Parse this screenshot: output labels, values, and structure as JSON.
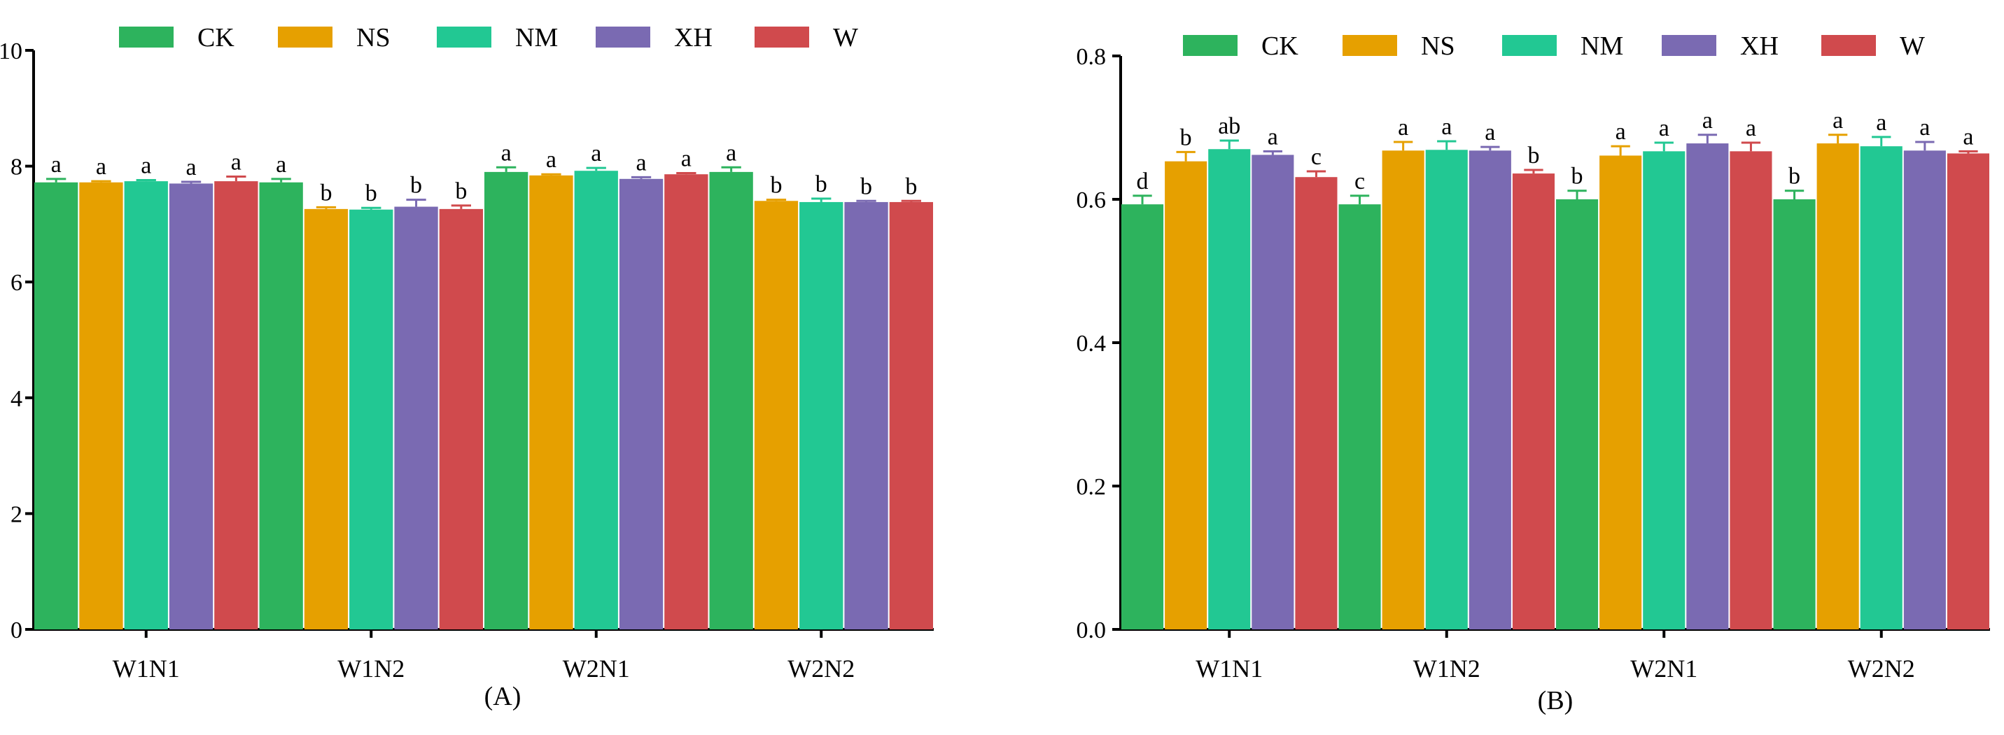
{
  "colors": {
    "CK": "#2db35d",
    "NS": "#e6a000",
    "NM": "#22c893",
    "XH": "#7a6ab2",
    "W": "#d04a4d",
    "axis": "#000000"
  },
  "chart_data": [
    {
      "type": "bar",
      "panel_label": "(A)",
      "categories": [
        "W1N1",
        "W1N2",
        "W2N1",
        "W2N2"
      ],
      "series": [
        {
          "name": "CK",
          "values": [
            7.72,
            7.72,
            7.9,
            7.9
          ],
          "errors": [
            0.06,
            0.06,
            0.08,
            0.08
          ],
          "letters": [
            "a",
            "a",
            "a",
            "a"
          ]
        },
        {
          "name": "NS",
          "values": [
            7.72,
            7.26,
            7.84,
            7.4
          ],
          "errors": [
            0.02,
            0.03,
            0.02,
            0.02
          ],
          "letters": [
            "a",
            "b",
            "a",
            "b"
          ]
        },
        {
          "name": "NM",
          "values": [
            7.74,
            7.25,
            7.92,
            7.38
          ],
          "errors": [
            0.02,
            0.03,
            0.05,
            0.06
          ],
          "letters": [
            "a",
            "b",
            "a",
            "b"
          ]
        },
        {
          "name": "XH",
          "values": [
            7.7,
            7.3,
            7.78,
            7.38
          ],
          "errors": [
            0.03,
            0.12,
            0.03,
            0.02
          ],
          "letters": [
            "a",
            "b",
            "a",
            "b"
          ]
        },
        {
          "name": "W",
          "values": [
            7.74,
            7.26,
            7.86,
            7.38
          ],
          "errors": [
            0.08,
            0.06,
            0.02,
            0.02
          ],
          "letters": [
            "a",
            "b",
            "a",
            "b"
          ]
        }
      ],
      "ylim": [
        0,
        10
      ],
      "yticks": [
        "0",
        "2",
        "4",
        "6",
        "8",
        "10"
      ],
      "legend": [
        "CK",
        "NS",
        "NM",
        "XH",
        "W"
      ],
      "legend_position": "top",
      "xlabel": "",
      "ylabel": ""
    },
    {
      "type": "bar",
      "panel_label": "(B)",
      "categories": [
        "W1N1",
        "W1N2",
        "W2N1",
        "W2N2"
      ],
      "series": [
        {
          "name": "CK",
          "values": [
            0.593,
            0.593,
            0.6,
            0.6
          ],
          "errors": [
            0.012,
            0.012,
            0.012,
            0.012
          ],
          "letters": [
            "d",
            "c",
            "b",
            "b"
          ]
        },
        {
          "name": "NS",
          "values": [
            0.653,
            0.668,
            0.661,
            0.678
          ],
          "errors": [
            0.013,
            0.012,
            0.013,
            0.012
          ],
          "letters": [
            "b",
            "a",
            "a",
            "a"
          ]
        },
        {
          "name": "NM",
          "values": [
            0.67,
            0.669,
            0.667,
            0.674
          ],
          "errors": [
            0.012,
            0.012,
            0.012,
            0.013
          ],
          "letters": [
            "ab",
            "a",
            "a",
            "a"
          ]
        },
        {
          "name": "XH",
          "values": [
            0.662,
            0.668,
            0.678,
            0.668
          ],
          "errors": [
            0.005,
            0.005,
            0.012,
            0.012
          ],
          "letters": [
            "a",
            "a",
            "a",
            "a"
          ]
        },
        {
          "name": "W",
          "values": [
            0.631,
            0.636,
            0.667,
            0.664
          ],
          "errors": [
            0.008,
            0.005,
            0.012,
            0.003
          ],
          "letters": [
            "c",
            "b",
            "a",
            "a"
          ]
        }
      ],
      "ylim": [
        0,
        0.8
      ],
      "yticks": [
        "0.0",
        "0.2",
        "0.4",
        "0.6",
        "0.8"
      ],
      "legend": [
        "CK",
        "NS",
        "NM",
        "XH",
        "W"
      ],
      "legend_position": "top",
      "xlabel": "",
      "ylabel": ""
    }
  ]
}
